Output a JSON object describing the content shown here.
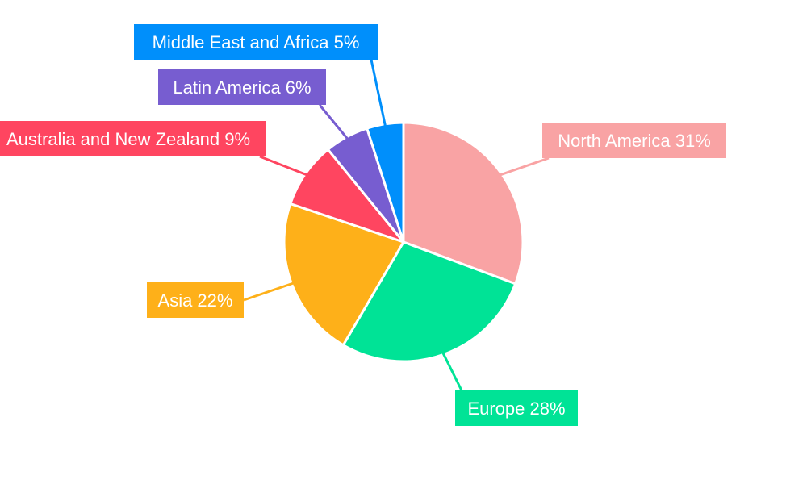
{
  "chart_data": {
    "type": "pie",
    "title": "",
    "legend": "none",
    "slices": [
      {
        "name": "North America",
        "value": 31,
        "label": "North America 31%",
        "color": "#f9a3a4"
      },
      {
        "name": "Europe",
        "value": 28,
        "label": "Europe 28%",
        "color": "#00e396"
      },
      {
        "name": "Asia",
        "value": 22,
        "label": "Asia 22%",
        "color": "#feb019"
      },
      {
        "name": "Australia and New Zealand",
        "value": 9,
        "label": "Australia and New Zealand 9%",
        "color": "#ff4560"
      },
      {
        "name": "Latin America",
        "value": 6,
        "label": "Latin America 6%",
        "color": "#775dd0"
      },
      {
        "name": "Middle East and Africa",
        "value": 5,
        "label": "Middle East and Africa 5%",
        "color": "#008ffb"
      }
    ]
  }
}
